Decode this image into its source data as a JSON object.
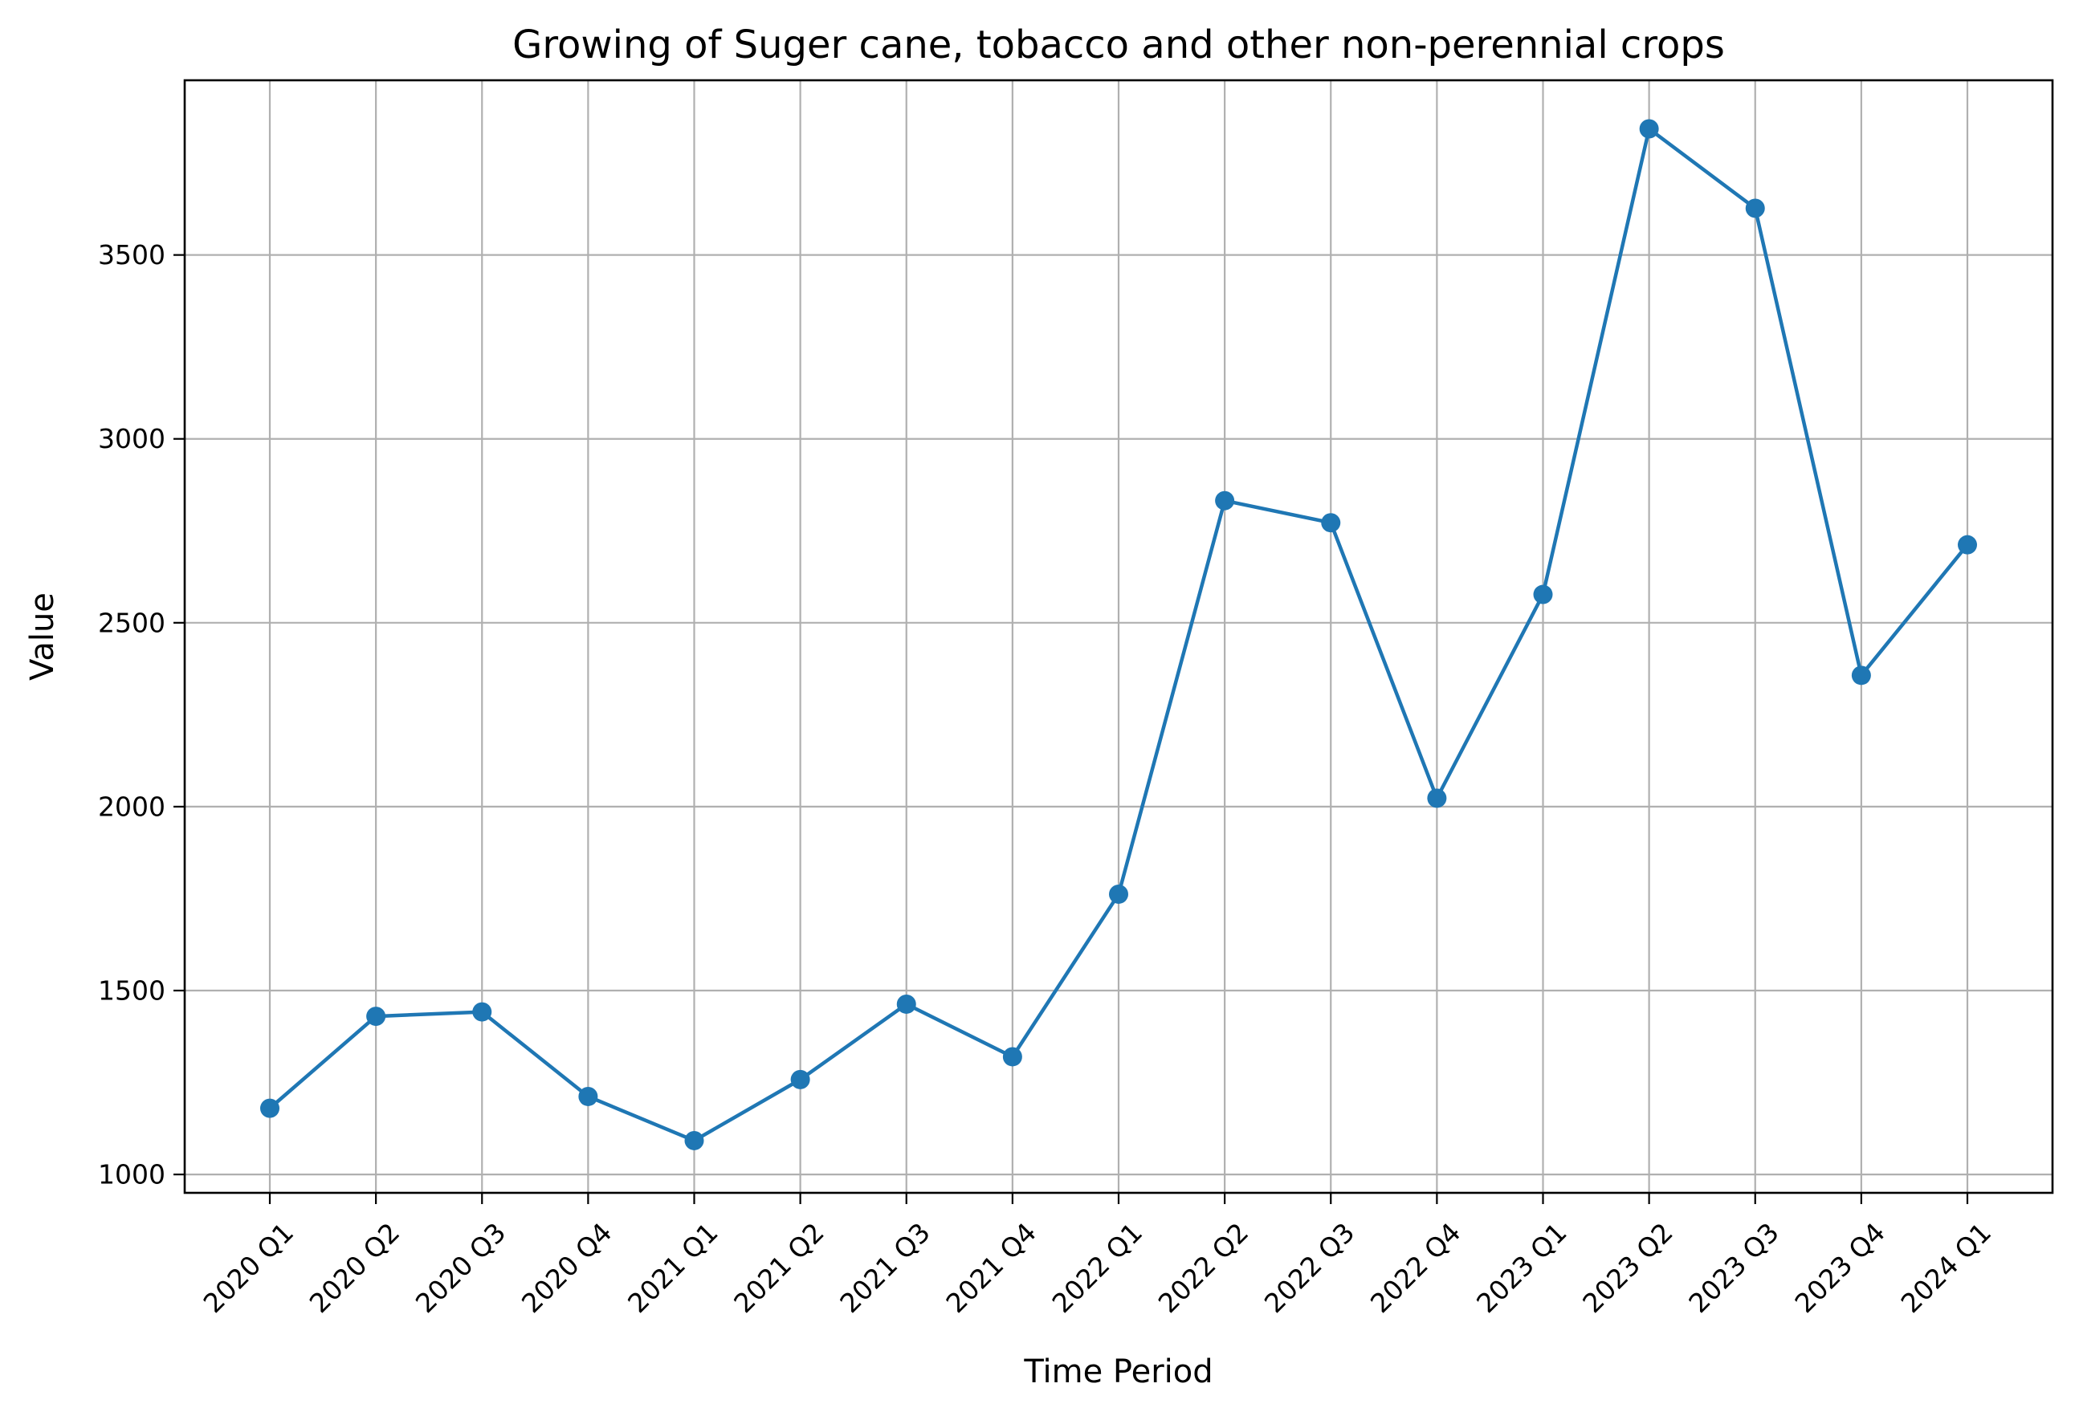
{
  "chart_data": {
    "type": "line",
    "title": "Growing of Suger cane, tobacco and other non-perennial crops",
    "xlabel": "Time Period",
    "ylabel": "Value",
    "categories": [
      "2020 Q1",
      "2020 Q2",
      "2020 Q3",
      "2020 Q4",
      "2021 Q1",
      "2021 Q2",
      "2021 Q3",
      "2021 Q4",
      "2022 Q1",
      "2022 Q2",
      "2022 Q3",
      "2022 Q4",
      "2023 Q1",
      "2023 Q2",
      "2023 Q3",
      "2023 Q4",
      "2024 Q1"
    ],
    "series": [
      {
        "values": [
          1180,
          1430,
          1442,
          1212,
          1092,
          1258,
          1463,
          1320,
          1762,
          2832,
          2772,
          2023,
          2577,
          3843,
          3627,
          2357,
          2712
        ],
        "color": "#1f77b4",
        "marker": "circle"
      }
    ],
    "yticks": [
      1000,
      1500,
      2000,
      2500,
      3000,
      3500
    ],
    "ylim": [
      950,
      3975
    ],
    "grid": true,
    "legend": "none"
  }
}
